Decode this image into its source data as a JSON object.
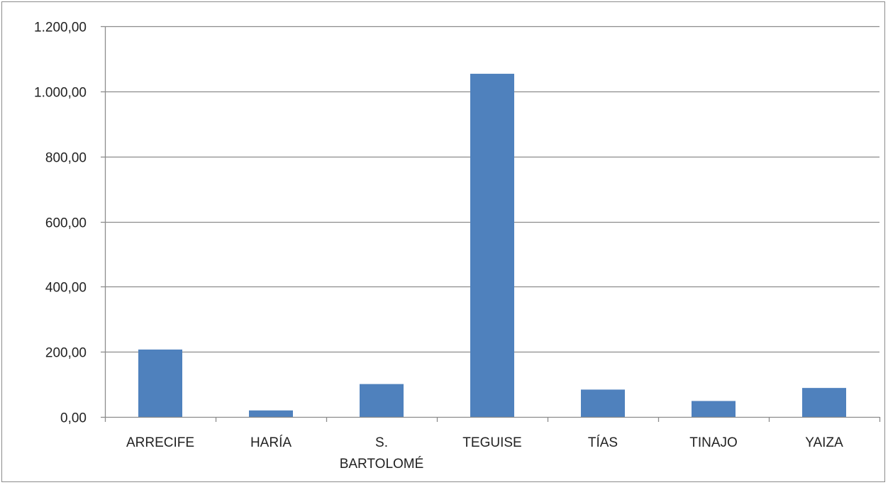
{
  "chart_data": {
    "type": "bar",
    "categories": [
      [
        "ARRECIFE"
      ],
      [
        "HARÍA"
      ],
      [
        "S.",
        "BARTOLOMÉ"
      ],
      [
        "TEGUISE"
      ],
      [
        "TÍAS"
      ],
      [
        "TINAJO"
      ],
      [
        "YAIZA"
      ]
    ],
    "values": [
      207,
      20,
      101,
      1054,
      84,
      49,
      89
    ],
    "ylim": [
      0,
      1200
    ],
    "yticks": [
      0,
      200,
      400,
      600,
      800,
      1000,
      1200
    ],
    "ytick_labels": [
      "0,00",
      "200,00",
      "400,00",
      "600,00",
      "800,00",
      "1.000,00",
      "1.200,00"
    ],
    "grid": true,
    "legend": "none",
    "title": "",
    "xlabel": "",
    "ylabel": "",
    "colors": {
      "bar": "#4f81bd",
      "grid": "#8c8c8c",
      "axis": "#8c8c8c"
    }
  }
}
